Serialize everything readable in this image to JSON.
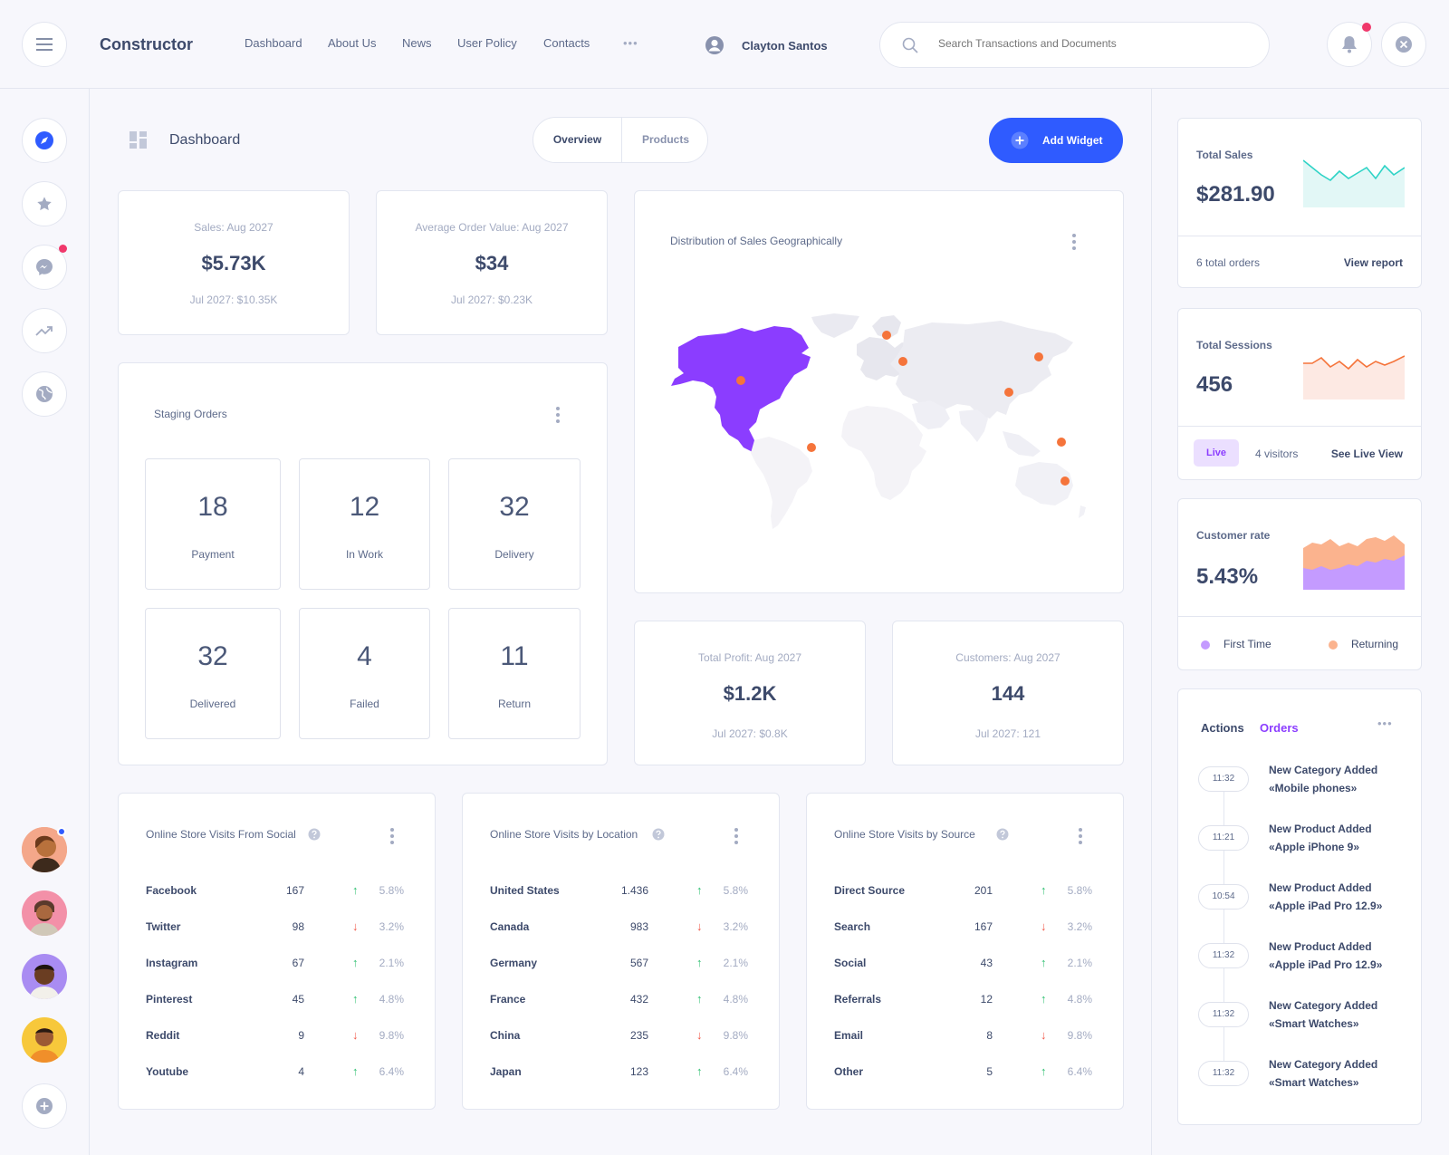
{
  "app": {
    "brand": "Constructor"
  },
  "nav": {
    "items": [
      "Dashboard",
      "About Us",
      "News",
      "User Policy",
      "Contacts"
    ],
    "more": "•••"
  },
  "user": {
    "name": "Clayton Santos"
  },
  "search": {
    "placeholder": "Search Transactions and Documents"
  },
  "page": {
    "title": "Dashboard",
    "tabs": [
      "Overview",
      "Products"
    ],
    "add_widget": "Add Widget"
  },
  "kpis": {
    "sales": {
      "label": "Sales: Aug 2027",
      "value": "$5.73K",
      "compare": "Jul 2027: $10.35K"
    },
    "aov": {
      "label": "Average Order Value: Aug 2027",
      "value": "$34",
      "compare": "Jul 2027: $0.23K"
    },
    "profit": {
      "label": "Total Profit: Aug 2027",
      "value": "$1.2K",
      "compare": "Jul 2027: $0.8K"
    },
    "customers": {
      "label": "Customers: Aug 2027",
      "value": "144",
      "compare": "Jul 2027: 121"
    }
  },
  "staging": {
    "title": "Staging Orders",
    "items": [
      {
        "num": "18",
        "label": "Payment"
      },
      {
        "num": "12",
        "label": "In Work"
      },
      {
        "num": "32",
        "label": "Delivery"
      },
      {
        "num": "32",
        "label": "Delivered"
      },
      {
        "num": "4",
        "label": "Failed"
      },
      {
        "num": "11",
        "label": "Return"
      }
    ]
  },
  "map": {
    "title": "Distribution of Sales Geographically"
  },
  "tables": [
    {
      "title": "Online Store Visits From Social",
      "rows": [
        {
          "name": "Facebook",
          "value": "167",
          "dir": "up",
          "pct": "5.8%"
        },
        {
          "name": "Twitter",
          "value": "98",
          "dir": "down",
          "pct": "3.2%"
        },
        {
          "name": "Instagram",
          "value": "67",
          "dir": "up",
          "pct": "2.1%"
        },
        {
          "name": "Pinterest",
          "value": "45",
          "dir": "up",
          "pct": "4.8%"
        },
        {
          "name": "Reddit",
          "value": "9",
          "dir": "down",
          "pct": "9.8%"
        },
        {
          "name": "Youtube",
          "value": "4",
          "dir": "up",
          "pct": "6.4%"
        }
      ]
    },
    {
      "title": "Online Store Visits by Location",
      "rows": [
        {
          "name": "United States",
          "value": "1.436",
          "dir": "up",
          "pct": "5.8%"
        },
        {
          "name": "Canada",
          "value": "983",
          "dir": "down",
          "pct": "3.2%"
        },
        {
          "name": "Germany",
          "value": "567",
          "dir": "up",
          "pct": "2.1%"
        },
        {
          "name": "France",
          "value": "432",
          "dir": "up",
          "pct": "4.8%"
        },
        {
          "name": "China",
          "value": "235",
          "dir": "down",
          "pct": "9.8%"
        },
        {
          "name": "Japan",
          "value": "123",
          "dir": "up",
          "pct": "6.4%"
        }
      ]
    },
    {
      "title": "Online Store Visits by Source",
      "rows": [
        {
          "name": "Direct Source",
          "value": "201",
          "dir": "up",
          "pct": "5.8%"
        },
        {
          "name": "Search",
          "value": "167",
          "dir": "down",
          "pct": "3.2%"
        },
        {
          "name": "Social",
          "value": "43",
          "dir": "up",
          "pct": "2.1%"
        },
        {
          "name": "Referrals",
          "value": "12",
          "dir": "up",
          "pct": "4.8%"
        },
        {
          "name": "Email",
          "value": "8",
          "dir": "down",
          "pct": "9.8%"
        },
        {
          "name": "Other",
          "value": "5",
          "dir": "up",
          "pct": "6.4%"
        }
      ]
    }
  ],
  "right": {
    "total_sales": {
      "label": "Total Sales",
      "value": "$281.90",
      "orders": "6 total orders",
      "link": "View report"
    },
    "total_sessions": {
      "label": "Total Sessions",
      "value": "456",
      "badge": "Live",
      "visitors": "4 visitors",
      "link": "See Live View"
    },
    "customer_rate": {
      "label": "Customer rate",
      "value": "5.43%",
      "legend": [
        "First Time",
        "Returning"
      ]
    },
    "activity": {
      "tabs": [
        "Actions",
        "Orders"
      ],
      "items": [
        {
          "time": "11:32",
          "line1": "New Category Added",
          "line2": "«Mobile phones»"
        },
        {
          "time": "11:21",
          "line1": "New Product Added",
          "line2": "«Apple iPhone 9»"
        },
        {
          "time": "10:54",
          "line1": "New Product Added",
          "line2": "«Apple iPad Pro 12.9»"
        },
        {
          "time": "11:32",
          "line1": "New Product Added",
          "line2": "«Apple iPad Pro 12.9»"
        },
        {
          "time": "11:32",
          "line1": "New Category Added",
          "line2": "«Smart Watches»"
        },
        {
          "time": "11:32",
          "line1": "New Category Added",
          "line2": "«Smart Watches»"
        }
      ]
    }
  },
  "colors": {
    "accent": "#2f5bff",
    "purple": "#8b3dff",
    "orange": "#f5743b",
    "teal": "#2ed3c6",
    "green": "#2fbf71",
    "red": "#f0594a"
  }
}
